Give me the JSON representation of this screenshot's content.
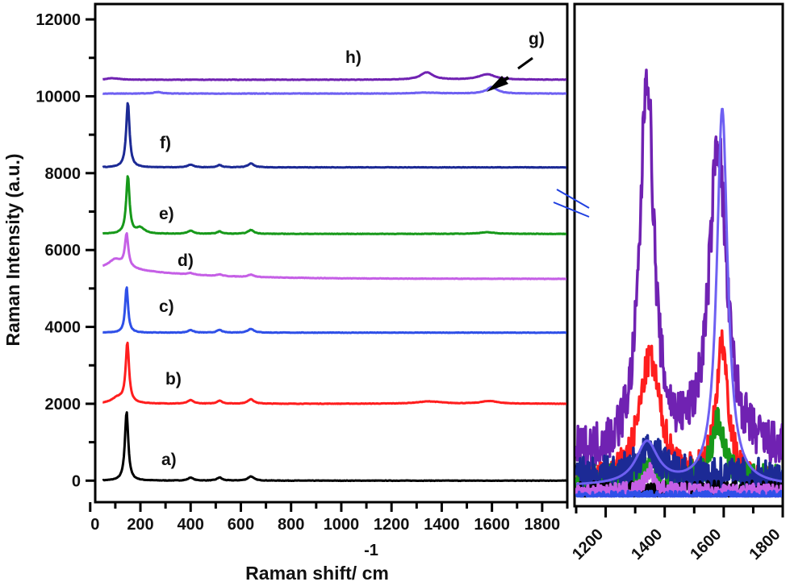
{
  "chart_data": [
    {
      "type": "line",
      "xlabel": "Raman shift/ cm",
      "xlabel_superscript": "-1",
      "ylabel": "Raman Intensity (a.u.)",
      "xlim": [
        20,
        1900
      ],
      "ylim": [
        -560,
        12400
      ],
      "xticks": [
        200,
        400,
        600,
        800,
        1000,
        1200,
        1400,
        1600,
        1800
      ],
      "yticks": [
        0,
        2000,
        4000,
        6000,
        8000,
        10000,
        12000
      ],
      "grid": false,
      "legend": "none",
      "series": [
        {
          "name": "a)",
          "color": "#000000",
          "baseline": 0,
          "peaks": [
            [
              145,
              1800,
              8
            ],
            [
              400,
              80,
              12
            ],
            [
              515,
              80,
              12
            ],
            [
              640,
              110,
              14
            ]
          ]
        },
        {
          "name": "b)",
          "color": "#ff1e1e",
          "baseline": 2000,
          "peaks": [
            [
              148,
              1550,
              8
            ],
            [
              110,
              150,
              30
            ],
            [
              400,
              90,
              14
            ],
            [
              515,
              80,
              12
            ],
            [
              640,
              120,
              14
            ],
            [
              1350,
              60,
              60
            ],
            [
              1590,
              70,
              40
            ]
          ]
        },
        {
          "name": "c)",
          "color": "#2f50e8",
          "baseline": 3850,
          "peaks": [
            [
              145,
              1200,
              7
            ],
            [
              400,
              70,
              12
            ],
            [
              515,
              70,
              12
            ],
            [
              640,
              100,
              14
            ]
          ]
        },
        {
          "name": "d)",
          "color": "#c55fe6",
          "baseline": 5250,
          "peaks": [
            [
              145,
              850,
              8
            ],
            [
              100,
              250,
              35
            ],
            [
              400,
              40,
              14
            ],
            [
              515,
              40,
              12
            ],
            [
              640,
              60,
              14
            ]
          ],
          "background": 250
        },
        {
          "name": "e)",
          "color": "#17991a",
          "baseline": 6420,
          "peaks": [
            [
              150,
              1500,
              8
            ],
            [
              200,
              150,
              20
            ],
            [
              400,
              80,
              14
            ],
            [
              515,
              60,
              12
            ],
            [
              640,
              100,
              14
            ],
            [
              1580,
              40,
              40
            ]
          ]
        },
        {
          "name": "f)",
          "color": "#1c2a95",
          "baseline": 8150,
          "peaks": [
            [
              150,
              1700,
              8
            ],
            [
              400,
              70,
              14
            ],
            [
              515,
              60,
              12
            ],
            [
              640,
              100,
              14
            ]
          ]
        },
        {
          "name": "g)",
          "color": "#6e60f2",
          "baseline": 10070,
          "peaks": [
            [
              270,
              40,
              20
            ],
            [
              1340,
              25,
              60
            ],
            [
              1600,
              170,
              25
            ]
          ]
        },
        {
          "name": "h)",
          "color": "#7022b2",
          "baseline": 10430,
          "peaks": [
            [
              90,
              40,
              30
            ],
            [
              1340,
              190,
              30
            ],
            [
              1580,
              140,
              40
            ]
          ]
        }
      ]
    },
    {
      "type": "line",
      "xlim": [
        1100,
        1800
      ],
      "ylim": [
        0,
        1
      ],
      "xticks": [
        1200,
        1400,
        1600,
        1800
      ],
      "axis_break": true,
      "series": [
        {
          "name": "h)",
          "color": "#7022b2",
          "baseline": 0.1,
          "noise": 0.045,
          "peaks": [
            [
              1340,
              0.76,
              28
            ],
            [
              1580,
              0.62,
              35
            ]
          ]
        },
        {
          "name": "b)",
          "color": "#ff1e1e",
          "baseline": 0.04,
          "noise": 0.03,
          "peaks": [
            [
              1350,
              0.25,
              45
            ],
            [
              1595,
              0.28,
              25
            ]
          ]
        },
        {
          "name": "e)",
          "color": "#17991a",
          "baseline": 0.05,
          "noise": 0.03,
          "peaks": [
            [
              1580,
              0.12,
              25
            ],
            [
              1350,
              0.03,
              40
            ]
          ]
        },
        {
          "name": "f)",
          "color": "#1c2a95",
          "baseline": 0.06,
          "noise": 0.035,
          "peaks": [
            [
              1350,
              0.05,
              50
            ]
          ]
        },
        {
          "name": "a)",
          "color": "#000000",
          "baseline": 0.03,
          "noise": 0.02,
          "peaks": []
        },
        {
          "name": "d)",
          "color": "#c55fe6",
          "baseline": 0.03,
          "noise": 0.015,
          "peaks": [
            [
              1350,
              0.04,
              20
            ]
          ]
        },
        {
          "name": "c)",
          "color": "#2f50e8",
          "baseline": 0.02,
          "noise": 0.01,
          "peaks": []
        },
        {
          "name": "g)",
          "color": "#6e60f2",
          "baseline": 0.04,
          "noise": 0,
          "peaks": [
            [
              1340,
              0.085,
              45
            ],
            [
              1595,
              0.75,
              22
            ]
          ]
        }
      ]
    }
  ]
}
